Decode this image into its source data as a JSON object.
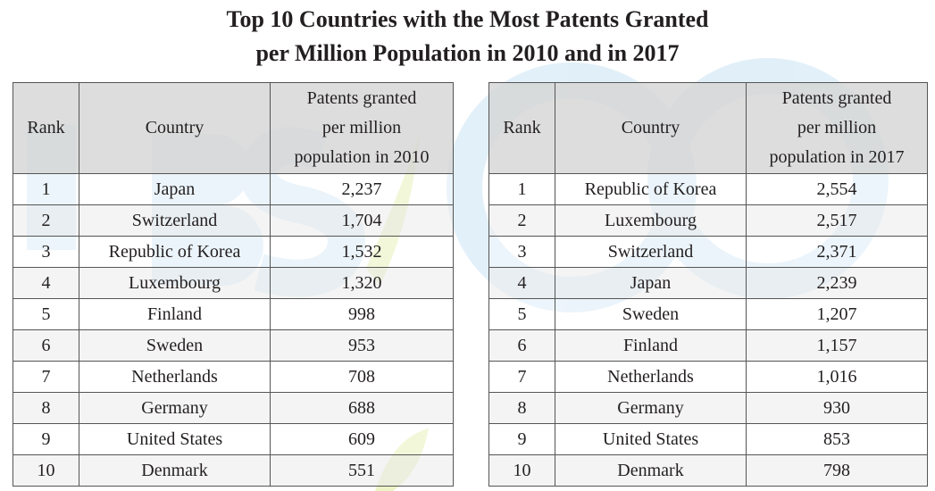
{
  "title": {
    "line1": "Top 10 Countries with the Most Patents Granted",
    "line2": "per Million Population in 2010 and in 2017"
  },
  "watermark": {
    "color": "#4aa0d8",
    "accent": "#c8dc5a"
  },
  "tables": [
    {
      "headers": {
        "rank": "Rank",
        "country": "Country",
        "value": [
          "Patents granted",
          "per million",
          "population in 2010"
        ]
      },
      "rows": [
        {
          "rank": "1",
          "country": "Japan",
          "value": "2,237"
        },
        {
          "rank": "2",
          "country": "Switzerland",
          "value": "1,704"
        },
        {
          "rank": "3",
          "country": "Republic of Korea",
          "value": "1,532"
        },
        {
          "rank": "4",
          "country": "Luxembourg",
          "value": "1,320"
        },
        {
          "rank": "5",
          "country": "Finland",
          "value": "998"
        },
        {
          "rank": "6",
          "country": "Sweden",
          "value": "953"
        },
        {
          "rank": "7",
          "country": "Netherlands",
          "value": "708"
        },
        {
          "rank": "8",
          "country": "Germany",
          "value": "688"
        },
        {
          "rank": "9",
          "country": "United States",
          "value": "609"
        },
        {
          "rank": "10",
          "country": "Denmark",
          "value": "551"
        }
      ]
    },
    {
      "headers": {
        "rank": "Rank",
        "country": "Country",
        "value": [
          "Patents granted",
          "per million",
          "population in 2017"
        ]
      },
      "rows": [
        {
          "rank": "1",
          "country": "Republic of Korea",
          "value": "2,554"
        },
        {
          "rank": "2",
          "country": "Luxembourg",
          "value": "2,517"
        },
        {
          "rank": "3",
          "country": "Switzerland",
          "value": "2,371"
        },
        {
          "rank": "4",
          "country": "Japan",
          "value": "2,239"
        },
        {
          "rank": "5",
          "country": "Sweden",
          "value": "1,207"
        },
        {
          "rank": "6",
          "country": "Finland",
          "value": "1,157"
        },
        {
          "rank": "7",
          "country": "Netherlands",
          "value": "1,016"
        },
        {
          "rank": "8",
          "country": "Germany",
          "value": "930"
        },
        {
          "rank": "9",
          "country": "United States",
          "value": "853"
        },
        {
          "rank": "10",
          "country": "Denmark",
          "value": "798"
        }
      ]
    }
  ]
}
